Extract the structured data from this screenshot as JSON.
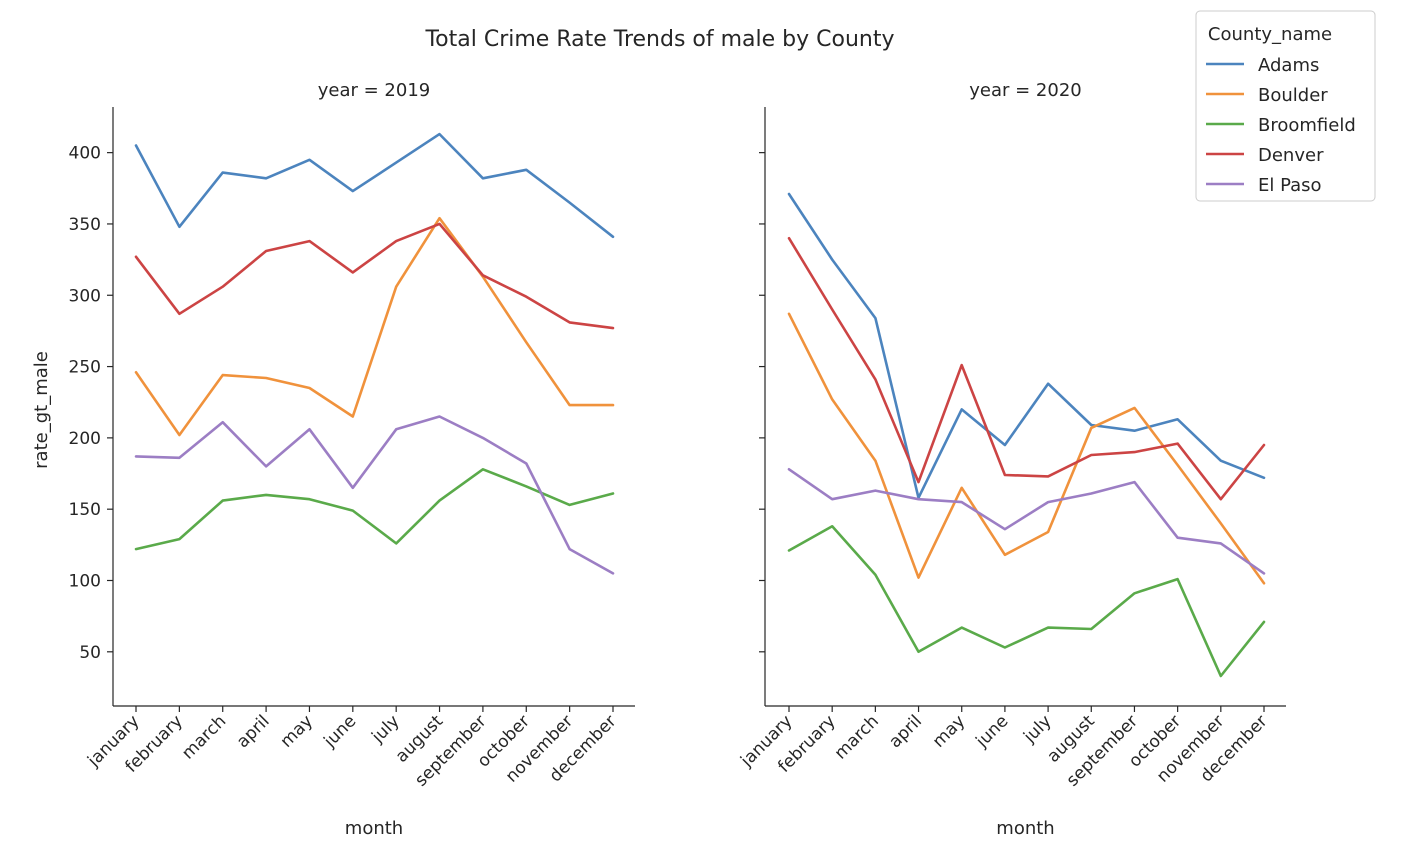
{
  "title": "Total Crime Rate Trends of male by County",
  "colors": {
    "Adams": "#4c84be",
    "Boulder": "#f0923c",
    "Broomfield": "#5aaa4a",
    "Denver": "#cc4444",
    "El Paso": "#9c7ec4"
  },
  "chart_data": [
    {
      "type": "line",
      "panel_title": "year = 2019",
      "xlabel": "month",
      "ylabel": "rate_gt_male",
      "ylim": [
        12,
        432
      ],
      "yticks": [
        50,
        100,
        150,
        200,
        250,
        300,
        350,
        400
      ],
      "categories": [
        "january",
        "february",
        "march",
        "april",
        "may",
        "june",
        "july",
        "august",
        "september",
        "october",
        "november",
        "december"
      ],
      "series": [
        {
          "name": "Adams",
          "values": [
            405,
            348,
            386,
            382,
            395,
            373,
            393,
            413,
            382,
            388,
            365,
            341
          ]
        },
        {
          "name": "Boulder",
          "values": [
            246,
            202,
            244,
            242,
            235,
            215,
            306,
            354,
            313,
            267,
            223,
            223
          ]
        },
        {
          "name": "Broomfield",
          "values": [
            122,
            129,
            156,
            160,
            157,
            149,
            126,
            156,
            178,
            166,
            153,
            161
          ]
        },
        {
          "name": "Denver",
          "values": [
            327,
            287,
            306,
            331,
            338,
            316,
            338,
            350,
            314,
            299,
            281,
            277
          ]
        },
        {
          "name": "El Paso",
          "values": [
            187,
            186,
            211,
            180,
            206,
            165,
            206,
            215,
            200,
            182,
            122,
            105
          ]
        }
      ]
    },
    {
      "type": "line",
      "panel_title": "year = 2020",
      "xlabel": "month",
      "ylabel": "",
      "ylim": [
        12,
        432
      ],
      "yticks": [
        50,
        100,
        150,
        200,
        250,
        300,
        350,
        400
      ],
      "categories": [
        "january",
        "february",
        "march",
        "april",
        "may",
        "june",
        "july",
        "august",
        "september",
        "october",
        "november",
        "december"
      ],
      "series": [
        {
          "name": "Adams",
          "values": [
            371,
            325,
            284,
            158,
            220,
            195,
            238,
            209,
            205,
            213,
            184,
            172
          ]
        },
        {
          "name": "Boulder",
          "values": [
            287,
            227,
            184,
            102,
            165,
            118,
            134,
            207,
            221,
            181,
            140,
            98
          ]
        },
        {
          "name": "Broomfield",
          "values": [
            121,
            138,
            104,
            50,
            67,
            53,
            67,
            66,
            91,
            101,
            33,
            71
          ]
        },
        {
          "name": "Denver",
          "values": [
            340,
            290,
            241,
            169,
            251,
            174,
            173,
            188,
            190,
            196,
            157,
            195
          ]
        },
        {
          "name": "El Paso",
          "values": [
            178,
            157,
            163,
            157,
            155,
            136,
            155,
            161,
            169,
            130,
            126,
            105
          ]
        }
      ]
    }
  ],
  "legend": {
    "title": "County_name",
    "placement": "top-right",
    "entries": [
      "Adams",
      "Boulder",
      "Broomfield",
      "Denver",
      "El Paso"
    ]
  }
}
